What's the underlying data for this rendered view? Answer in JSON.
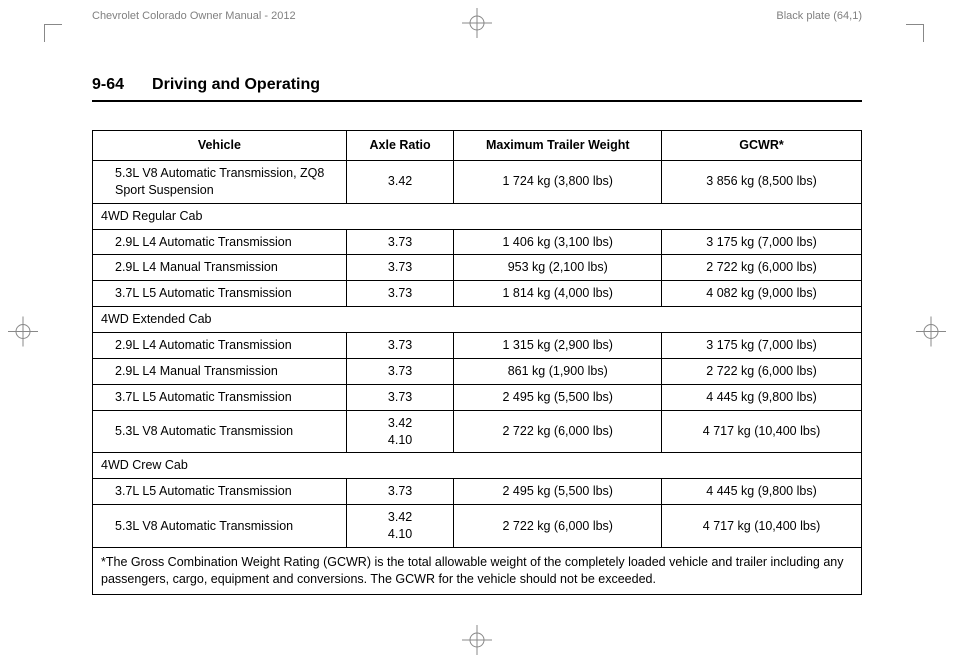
{
  "header": {
    "left": "Chevrolet Colorado Owner Manual - 2012",
    "right": "Black plate (64,1)"
  },
  "section": {
    "page_number": "9-64",
    "title": "Driving and Operating"
  },
  "table": {
    "headers": {
      "vehicle": "Vehicle",
      "axle": "Axle Ratio",
      "trailer": "Maximum Trailer Weight",
      "gcwr": "GCWR*"
    },
    "rows": [
      {
        "type": "data",
        "vehicle": "5.3L V8 Automatic Transmission, ZQ8 Sport Suspension",
        "axle": "3.42",
        "trailer": "1 724 kg (3,800 lbs)",
        "gcwr": "3 856 kg (8,500 lbs)"
      },
      {
        "type": "section",
        "label": "4WD Regular Cab"
      },
      {
        "type": "data",
        "vehicle": "2.9L L4 Automatic Transmission",
        "axle": "3.73",
        "trailer": "1 406 kg (3,100 lbs)",
        "gcwr": "3 175 kg (7,000 lbs)"
      },
      {
        "type": "data",
        "vehicle": "2.9L L4 Manual Transmission",
        "axle": "3.73",
        "trailer": "953 kg (2,100 lbs)",
        "gcwr": "2 722 kg (6,000 lbs)"
      },
      {
        "type": "data",
        "vehicle": "3.7L L5 Automatic Transmission",
        "axle": "3.73",
        "trailer": "1 814 kg (4,000 lbs)",
        "gcwr": "4 082 kg (9,000 lbs)"
      },
      {
        "type": "section",
        "label": "4WD Extended Cab"
      },
      {
        "type": "data",
        "vehicle": "2.9L L4 Automatic Transmission",
        "axle": "3.73",
        "trailer": "1 315 kg (2,900 lbs)",
        "gcwr": "3 175 kg (7,000 lbs)"
      },
      {
        "type": "data",
        "vehicle": "2.9L L4 Manual Transmission",
        "axle": "3.73",
        "trailer": "861 kg (1,900 lbs)",
        "gcwr": "2 722 kg (6,000 lbs)"
      },
      {
        "type": "data",
        "vehicle": "3.7L L5 Automatic Transmission",
        "axle": "3.73",
        "trailer": "2 495 kg (5,500 lbs)",
        "gcwr": "4 445 kg (9,800 lbs)"
      },
      {
        "type": "data",
        "vehicle": "5.3L V8 Automatic Transmission",
        "axle": "3.42\n4.10",
        "trailer": "2 722 kg (6,000 lbs)",
        "gcwr": "4 717 kg (10,400 lbs)"
      },
      {
        "type": "section",
        "label": "4WD Crew Cab"
      },
      {
        "type": "data",
        "vehicle": "3.7L L5 Automatic Transmission",
        "axle": "3.73",
        "trailer": "2 495 kg (5,500 lbs)",
        "gcwr": "4 445 kg (9,800 lbs)"
      },
      {
        "type": "data",
        "vehicle": "5.3L V8 Automatic Transmission",
        "axle": "3.42\n4.10",
        "trailer": "2 722 kg (6,000 lbs)",
        "gcwr": "4 717 kg (10,400 lbs)"
      }
    ],
    "footnote": "*The Gross Combination Weight Rating (GCWR) is the total allowable weight of the completely loaded vehicle and trailer including any passengers, cargo, equipment and conversions. The GCWR for the vehicle should not be exceeded."
  }
}
